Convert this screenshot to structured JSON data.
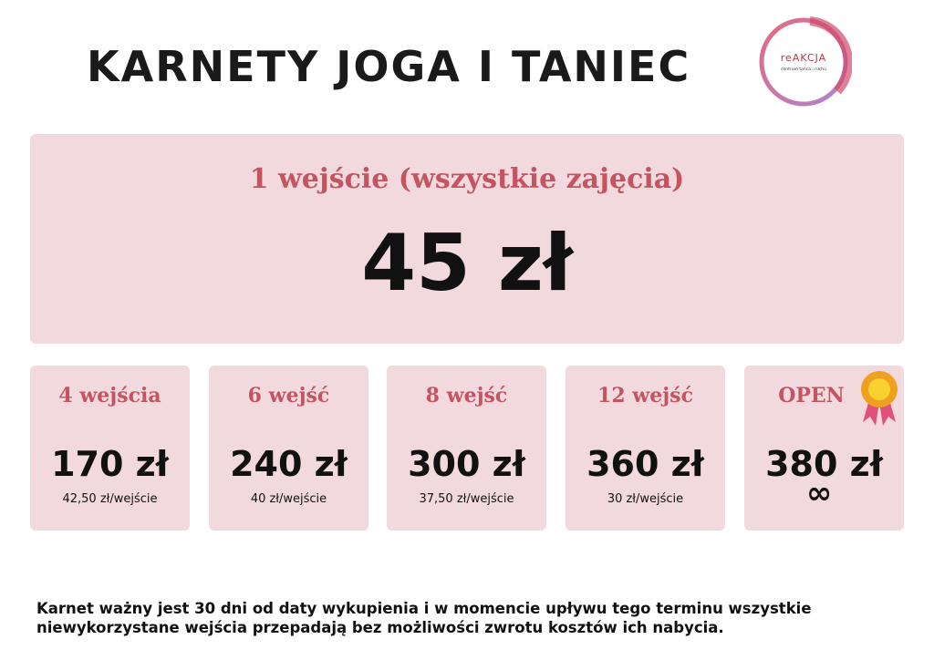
{
  "title": "KARNETY JOGA I TANIEC",
  "logo": {
    "name": "reAKCJA",
    "subtitle": "centrum tańca i ruchu"
  },
  "main": {
    "label": "1 wejście (wszystkie zajęcia)",
    "price": "45 zł"
  },
  "cards": [
    {
      "label": "4 wejścia",
      "price": "170 zł",
      "per": "42,50 zł/wejście"
    },
    {
      "label": "6 wejść",
      "price": "240 zł",
      "per": "40 zł/wejście"
    },
    {
      "label": "8 wejść",
      "price": "300 zł",
      "per": "37,50 zł/wejście"
    },
    {
      "label": "12 wejść",
      "price": "360 zł",
      "per": "30 zł/wejście"
    },
    {
      "label": "OPEN",
      "price": "380 zł",
      "per": "∞",
      "icon": "medal-icon"
    }
  ],
  "note": "Karnet ważny jest 30 dni od daty wykupienia i w momencie upływu tego terminu wszystkie niewykorzystane wejścia przepadają bez możliwości zwrotu kosztów ich nabycia.",
  "colors": {
    "card_bg": "#f2d9de",
    "accent": "#c4545f"
  }
}
